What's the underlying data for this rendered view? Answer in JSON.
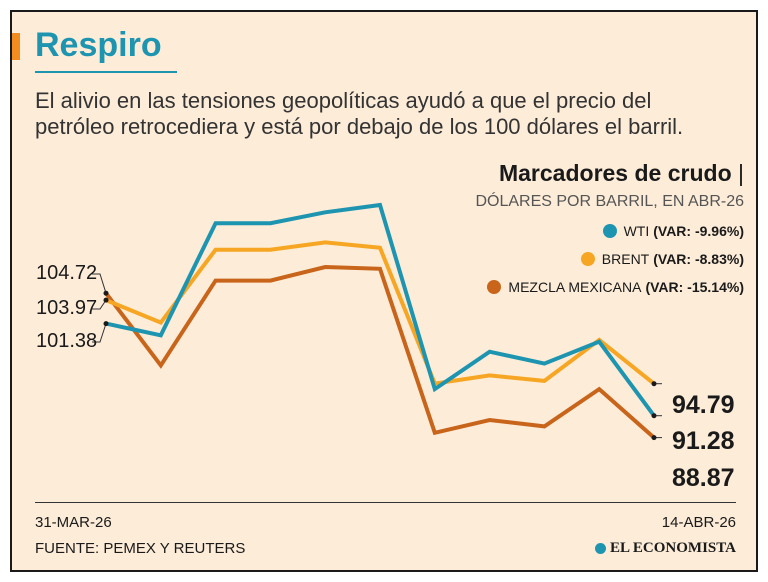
{
  "header": {
    "title": "Respiro",
    "subtitle": "El alivio en las tensiones geopolíticas ayudó a que el precio del petróleo retrocediera y está por debajo de los 100 dólares el barril."
  },
  "legend": {
    "title": "Marcadores de crudo",
    "pipe": "|",
    "subtitle": "DÓLARES POR BARRIL, EN ABR-26",
    "items": [
      {
        "name": "WTI",
        "var": "(VAR: -9.96%)",
        "color": "#1e95b0"
      },
      {
        "name": "BRENT",
        "var": "(VAR: -8.83%)",
        "color": "#f6a623"
      },
      {
        "name": "MEZCLA MEXICANA",
        "var": "(VAR: -15.14%)",
        "color": "#c8651b"
      }
    ]
  },
  "chart_data": {
    "type": "line",
    "x_start_label": "31-MAR-26",
    "x_end_label": "14-ABR-26",
    "ylim": [
      84,
      120
    ],
    "grid": false,
    "series": [
      {
        "name": "WTI",
        "color": "#1e95b0",
        "values": [
          101.38,
          100.1,
          112.4,
          112.4,
          113.6,
          114.4,
          94.2,
          98.3,
          97.0,
          99.4,
          91.28
        ],
        "start_label": "101.38",
        "end_label": "91.28"
      },
      {
        "name": "BRENT",
        "color": "#f6a623",
        "values": [
          103.97,
          101.5,
          109.5,
          109.5,
          110.3,
          109.7,
          94.8,
          95.7,
          95.1,
          99.6,
          94.79
        ],
        "start_label": "103.97",
        "end_label": "94.79"
      },
      {
        "name": "MEZCLA MEXICANA",
        "color": "#c8651b",
        "values": [
          104.72,
          96.8,
          106.1,
          106.1,
          107.6,
          107.4,
          89.4,
          90.8,
          90.1,
          94.2,
          88.87
        ],
        "start_label": "104.72",
        "end_label": "88.87"
      }
    ]
  },
  "footer": {
    "source": "FUENTE: PEMEX Y REUTERS",
    "brand": "EL ECONOMISTA"
  }
}
